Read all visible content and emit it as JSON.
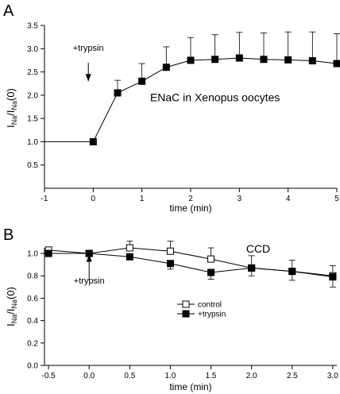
{
  "chart_data": [
    {
      "panel_label": "A",
      "type": "line",
      "xlabel": "time (min)",
      "ylabel": "I_Na/I_Na(0)",
      "xlim": [
        -1,
        5
      ],
      "ylim": [
        0,
        3.5
      ],
      "x_ticks": [
        -1,
        0,
        1,
        2,
        3,
        4,
        5
      ],
      "x_tick_labels": [
        "-1",
        "0",
        "1",
        "2",
        "3",
        "4",
        "5"
      ],
      "y_ticks": [
        0.5,
        1.0,
        1.5,
        2.0,
        2.5,
        3.0,
        3.5
      ],
      "y_tick_labels": [
        "0.5",
        "1.0",
        "1.5",
        "2.0",
        "2.5",
        "3.0",
        "3.5"
      ],
      "grid": false,
      "series": [
        {
          "marker": "filled-square",
          "color": "#000000",
          "x": [
            0,
            0.5,
            1,
            1.5,
            2,
            2.5,
            3,
            3.5,
            4,
            4.5,
            5
          ],
          "values": [
            1.0,
            2.05,
            2.3,
            2.6,
            2.75,
            2.77,
            2.8,
            2.77,
            2.76,
            2.74,
            2.68
          ],
          "error_upper": [
            0,
            0.27,
            0.38,
            0.44,
            0.49,
            0.53,
            0.55,
            0.57,
            0.6,
            0.62,
            0.64
          ],
          "baseline_from_x": -1
        }
      ],
      "annotations": [
        {
          "text": "+trypsin",
          "x": -0.1,
          "y": 2.95,
          "arrow_from_y": 2.7,
          "arrow_to_y": 2.3,
          "arrow_x": -0.1
        },
        {
          "text": "ENaC in Xenopus oocytes",
          "x": 2.5,
          "y": 1.87
        }
      ]
    },
    {
      "panel_label": "B",
      "type": "line",
      "title": "CCD",
      "xlabel": "time (min)",
      "ylabel": "I_Na/I_Na(0)",
      "xlim": [
        -0.55,
        3.05
      ],
      "ylim": [
        0,
        1.05
      ],
      "x_ticks": [
        -0.5,
        0,
        0.5,
        1,
        1.5,
        2,
        2.5,
        3
      ],
      "x_tick_labels": [
        "-0.5",
        "0.0",
        "0.5",
        "1.0",
        "1.5",
        "2.0",
        "2.5",
        "3.0"
      ],
      "y_ticks": [
        0.0,
        0.2,
        0.4,
        0.6,
        0.8,
        1.0
      ],
      "y_tick_labels": [
        "0.0",
        "0.2",
        "0.4",
        "0.6",
        "0.8",
        "1.0"
      ],
      "grid": false,
      "legend_placement": "center-right",
      "series": [
        {
          "name": "control",
          "marker": "open-square",
          "color": "#000000",
          "x": [
            -0.5,
            0,
            0.5,
            1.0,
            1.5,
            2.0,
            2.5,
            3.0
          ],
          "values": [
            1.03,
            1.0,
            1.05,
            1.02,
            0.95,
            0.87,
            0.84,
            0.8
          ],
          "error_upper": [
            0.02,
            0.0,
            0.06,
            0.09,
            0.1,
            0.11,
            0.1,
            0.09
          ],
          "error_lower": [
            0.0,
            0.0,
            0.0,
            0.0,
            0.0,
            0.0,
            0.0,
            0.0
          ]
        },
        {
          "name": "+trypsin",
          "marker": "filled-square",
          "color": "#000000",
          "x": [
            -0.5,
            0,
            0.5,
            1.0,
            1.5,
            2.0,
            2.5,
            3.0
          ],
          "values": [
            1.0,
            1.0,
            0.97,
            0.91,
            0.83,
            0.87,
            0.84,
            0.79
          ],
          "error_upper": [
            0.0,
            0.0,
            0.0,
            0.0,
            0.0,
            0.0,
            0.0,
            0.0
          ],
          "error_lower": [
            0.0,
            0.0,
            0.0,
            0.05,
            0.06,
            0.07,
            0.08,
            0.09
          ]
        }
      ],
      "annotations": [
        {
          "text": "+trypsin",
          "x": 0.0,
          "y": 0.73,
          "arrow_from_y": 0.76,
          "arrow_to_y": 0.99,
          "arrow_x": 0.0
        }
      ]
    }
  ]
}
